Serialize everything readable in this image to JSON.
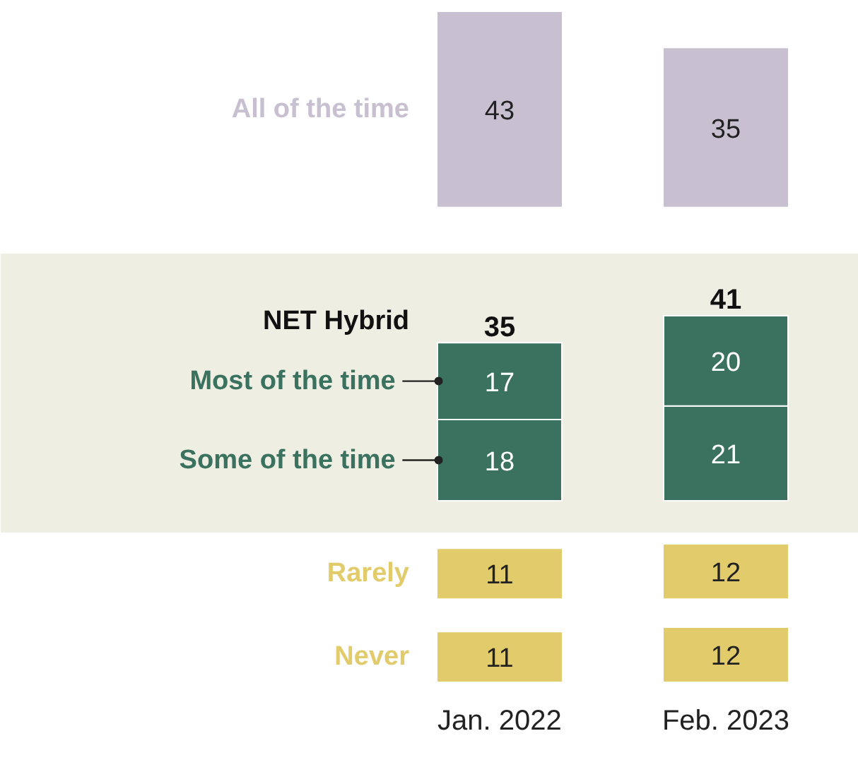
{
  "chart_data": [
    {
      "type": "bar",
      "categories": [
        null,
        null
      ],
      "tick_labels": false,
      "data_labels": true,
      "series": [
        {
          "name": "All of the time",
          "color": "#c8c0d1",
          "values": [
            43,
            35
          ]
        }
      ]
    },
    {
      "type": "bar",
      "categories": [
        null,
        null
      ],
      "tick_labels": false,
      "data_labels": true,
      "stacked": true,
      "series": [
        {
          "name": "Some of the time",
          "color": "#3a725f",
          "values": [
            18,
            21
          ]
        },
        {
          "name": "Most of the time",
          "color": "#3a725f",
          "values": [
            17,
            20
          ]
        }
      ],
      "totals": [
        "35",
        "41"
      ],
      "annotations": [
        "NET Hybrid"
      ]
    },
    {
      "type": "bar",
      "categories": [
        null,
        null
      ],
      "tick_labels": false,
      "data_labels": true,
      "series": [
        {
          "name": "Rarely",
          "color": "#e2cb6a",
          "values": [
            11,
            12
          ]
        }
      ]
    },
    {
      "type": "bar",
      "categories": [
        "Jan. 2022",
        "Feb. 2023"
      ],
      "tick_labels": "x",
      "data_labels": true,
      "series": [
        {
          "name": "Never",
          "color": "#e2cb6a",
          "values": [
            11,
            12
          ]
        }
      ]
    }
  ]
}
